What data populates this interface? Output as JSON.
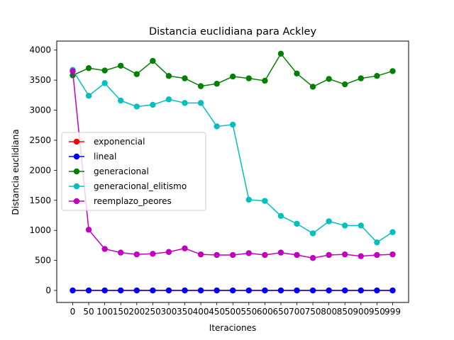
{
  "chart_data": {
    "type": "line",
    "title": "Distancia euclidiana para Ackley",
    "xlabel": "Iteraciones",
    "ylabel": "Distancia euclidiana",
    "x": [
      0,
      50,
      100,
      150,
      200,
      250,
      300,
      350,
      400,
      450,
      500,
      550,
      600,
      650,
      700,
      750,
      800,
      850,
      900,
      950,
      999
    ],
    "x_tick_labels": [
      "0",
      "50",
      "100",
      "150",
      "200",
      "250",
      "300",
      "350",
      "400",
      "450",
      "500",
      "550",
      "600",
      "650",
      "700",
      "750",
      "800",
      "850",
      "900",
      "950",
      "999"
    ],
    "ylim": [
      -200,
      4150
    ],
    "y_ticks": [
      0,
      500,
      1000,
      1500,
      2000,
      2500,
      3000,
      3500,
      4000
    ],
    "y_tick_labels": [
      "0",
      "500",
      "1000",
      "1500",
      "2000",
      "2500",
      "3000",
      "3500",
      "4000"
    ],
    "grid": false,
    "legend_position": "center-left",
    "series": [
      {
        "name": "exponencial",
        "color": "#ff0000",
        "values": [
          0,
          0,
          0,
          0,
          0,
          0,
          0,
          0,
          0,
          0,
          0,
          0,
          0,
          0,
          0,
          0,
          0,
          0,
          0,
          0,
          0
        ]
      },
      {
        "name": "lineal",
        "color": "#0000ff",
        "values": [
          0,
          0,
          0,
          0,
          0,
          0,
          0,
          0,
          0,
          0,
          0,
          0,
          0,
          0,
          0,
          0,
          0,
          0,
          0,
          0,
          0
        ]
      },
      {
        "name": "generacional",
        "color": "#008000",
        "values": [
          3580,
          3700,
          3660,
          3740,
          3600,
          3820,
          3570,
          3530,
          3400,
          3440,
          3560,
          3530,
          3490,
          3940,
          3610,
          3390,
          3520,
          3430,
          3530,
          3570,
          3650
        ]
      },
      {
        "name": "generacional_elitismo",
        "color": "#00bfbf",
        "values": [
          3670,
          3240,
          3450,
          3160,
          3060,
          3090,
          3180,
          3120,
          3120,
          2730,
          2760,
          1510,
          1490,
          1240,
          1110,
          950,
          1150,
          1080,
          1080,
          800,
          970
        ]
      },
      {
        "name": "reemplazo_peores",
        "color": "#bf00bf",
        "values": [
          3650,
          1010,
          690,
          630,
          600,
          610,
          640,
          700,
          600,
          590,
          590,
          620,
          590,
          630,
          590,
          540,
          590,
          600,
          570,
          590,
          600
        ]
      }
    ]
  }
}
